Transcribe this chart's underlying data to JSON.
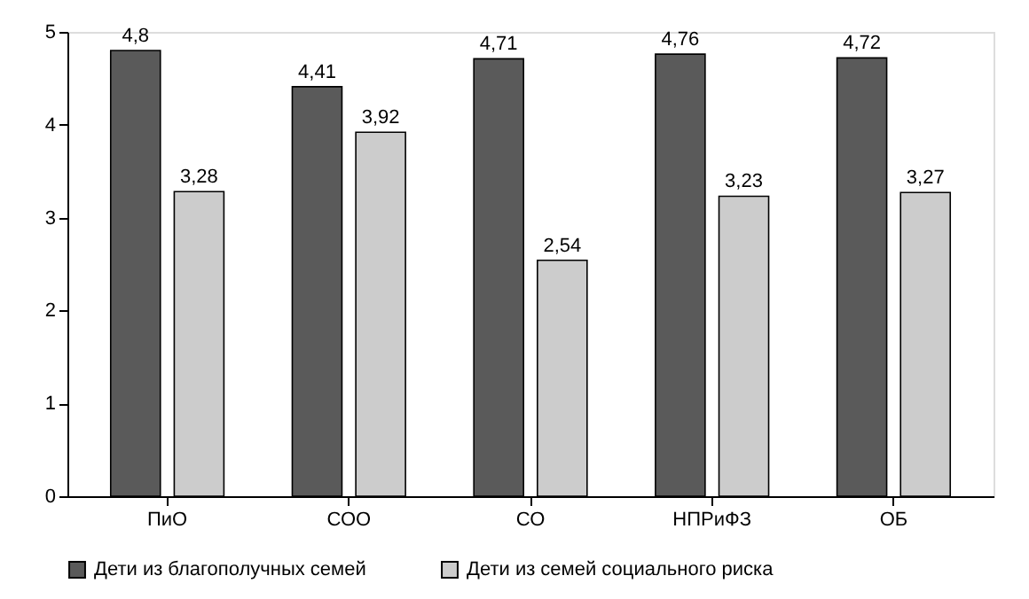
{
  "chart_data": {
    "type": "bar",
    "categories": [
      "ПиО",
      "СОО",
      "СО",
      "НПРиФЗ",
      "ОБ"
    ],
    "series": [
      {
        "name": "Дети из благополучных семей",
        "color": "#5a5a5a",
        "values": [
          4.8,
          4.41,
          4.71,
          4.76,
          4.72
        ],
        "value_labels": [
          "4,8",
          "4,41",
          "4,71",
          "4,76",
          "4,72"
        ]
      },
      {
        "name": "Дети из семей социального риска",
        "color": "#cccccc",
        "values": [
          3.28,
          3.92,
          2.54,
          3.23,
          3.27
        ],
        "value_labels": [
          "3,28",
          "3,92",
          "2,54",
          "3,23",
          "3,27"
        ]
      }
    ],
    "ylim": [
      0,
      5
    ],
    "yticks": [
      0,
      1,
      2,
      3,
      4,
      5
    ],
    "grid": false,
    "legend": "bottom"
  }
}
